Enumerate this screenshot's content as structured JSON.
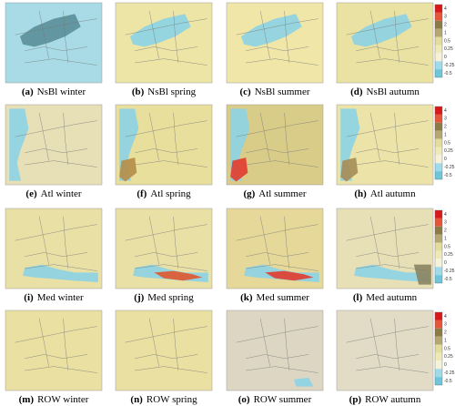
{
  "panels": [
    {
      "label": "(a)",
      "name": "NsBl winter"
    },
    {
      "label": "(b)",
      "name": "NsBl spring"
    },
    {
      "label": "(c)",
      "name": "NsBl summer"
    },
    {
      "label": "(d)",
      "name": "NsBl autumn"
    },
    {
      "label": "(e)",
      "name": "Atl winter"
    },
    {
      "label": "(f)",
      "name": "Atl spring"
    },
    {
      "label": "(g)",
      "name": "Atl summer"
    },
    {
      "label": "(h)",
      "name": "Atl autumn"
    },
    {
      "label": "(i)",
      "name": "Med winter"
    },
    {
      "label": "(j)",
      "name": "Med spring"
    },
    {
      "label": "(k)",
      "name": "Med summer"
    },
    {
      "label": "(l)",
      "name": "Med autumn"
    },
    {
      "label": "(m)",
      "name": "ROW winter"
    },
    {
      "label": "(n)",
      "name": "ROW spring"
    },
    {
      "label": "(o)",
      "name": "ROW summer"
    },
    {
      "label": "(p)",
      "name": "ROW autumn"
    }
  ],
  "colorbar": {
    "labels": [
      "4",
      "3",
      "2",
      "1",
      "0.5",
      "0.25",
      "0",
      "-0.25",
      "-0.5"
    ]
  }
}
